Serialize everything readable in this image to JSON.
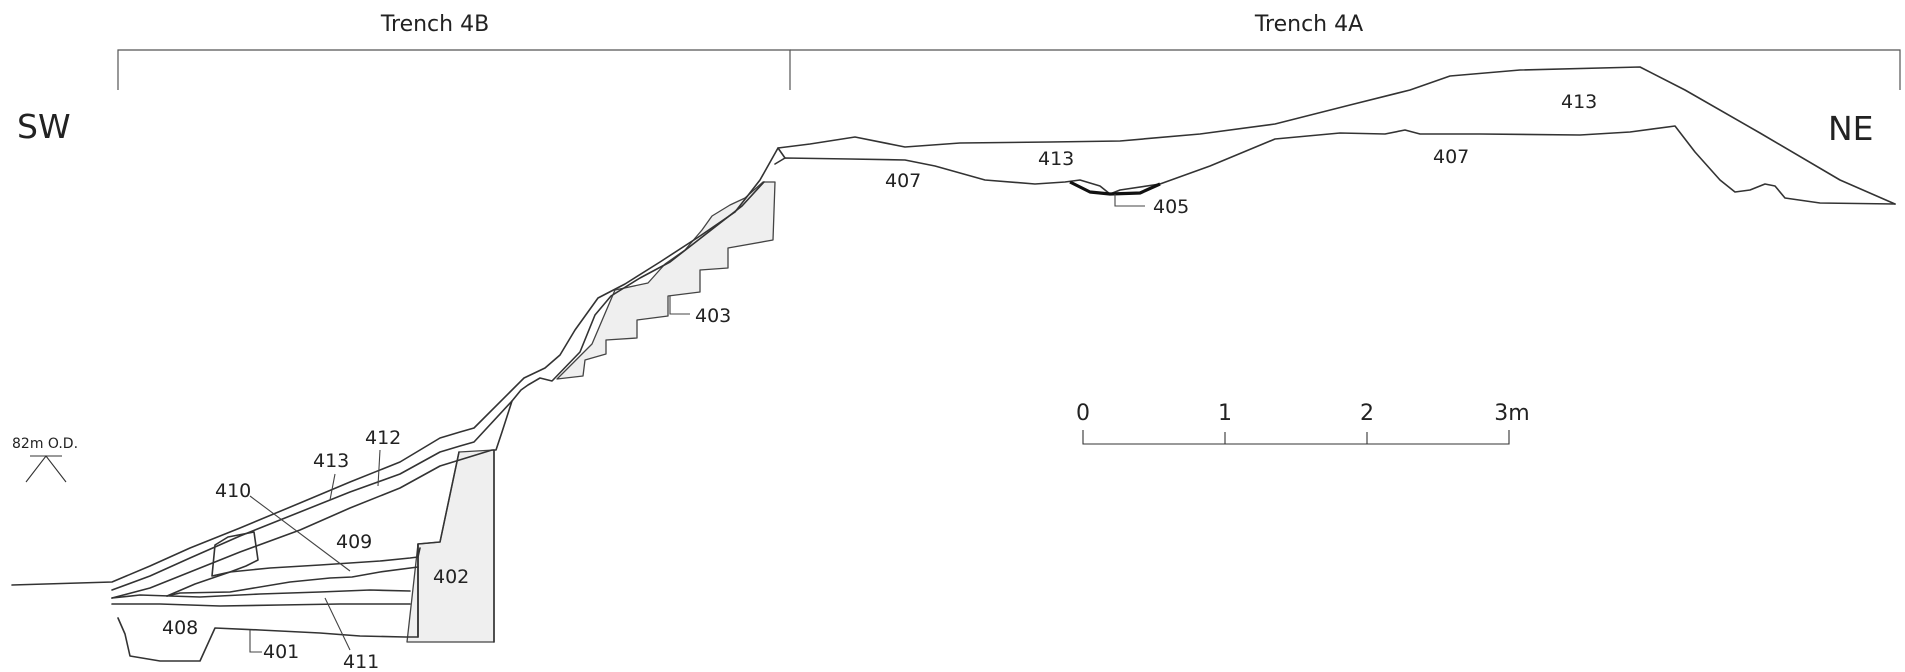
{
  "header": {
    "trench_4b": "Trench 4B",
    "trench_4a": "Trench 4A"
  },
  "orientation": {
    "left": "SW",
    "right": "NE"
  },
  "datum": {
    "label": "82m O.D."
  },
  "scale_bar": {
    "ticks": [
      "0",
      "1",
      "2",
      "3m"
    ]
  },
  "contexts": {
    "c401": "401",
    "c402": "402",
    "c403": "403",
    "c405": "405",
    "c407a": "407",
    "c407b": "407",
    "c408": "408",
    "c409": "409",
    "c410": "410",
    "c411": "411",
    "c412": "412",
    "c413a": "413",
    "c413b": "413",
    "c413c": "413"
  },
  "colors": {
    "line": "#333333",
    "fill_shaded": "#efefef",
    "background": "#ffffff",
    "text": "#222222"
  }
}
